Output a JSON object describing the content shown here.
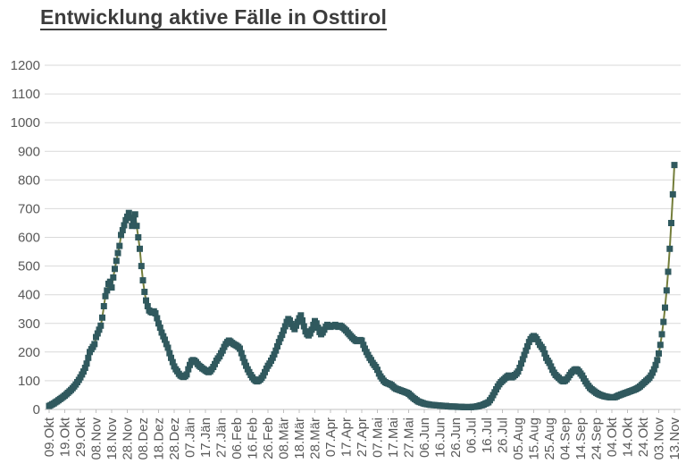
{
  "title": "Entwicklung aktive Fälle in Osttirol",
  "chart_data": {
    "type": "line",
    "title": "Entwicklung aktive Fälle in Osttirol",
    "xlabel": "",
    "ylabel": "",
    "ylim": [
      0,
      1200
    ],
    "y_ticks": [
      0,
      100,
      200,
      300,
      400,
      500,
      600,
      700,
      800,
      900,
      1000,
      1100,
      1200
    ],
    "x_tick_labels": [
      "09.Okt",
      "19.Okt",
      "29.Okt",
      "08.Nov",
      "18.Nov",
      "28.Nov",
      "08.Dez",
      "18.Dez",
      "28.Dez",
      "07.Jän",
      "17.Jän",
      "27.Jän",
      "06.Feb",
      "16.Feb",
      "26.Feb",
      "08.Mär",
      "18.Mär",
      "28.Mär",
      "07.Apr",
      "17.Apr",
      "27.Apr",
      "07.Mai",
      "17.Mai",
      "27.Mai",
      "06.Jun",
      "16.Jun",
      "26.Jun",
      "06.Jul",
      "16.Jul",
      "26.Jul",
      "05.Aug",
      "15.Aug",
      "25.Aug",
      "04.Sep",
      "14.Sep",
      "24.Sep",
      "04.Okt",
      "14.Okt",
      "24.Okt",
      "03.Nov",
      "13.Nov"
    ],
    "tick_interval_days": 10,
    "grid": true,
    "legend": "none",
    "marker": "square",
    "line_color": "#747E3B",
    "marker_color": "#30595E",
    "colors": {
      "grid": "#D9D9D9",
      "axis": "#C0C0C0",
      "tick_text": "#595959",
      "title_text": "#3C3C3C"
    },
    "series": [
      {
        "name": "aktive Fälle",
        "values": [
          12,
          15,
          18,
          21,
          25,
          28,
          32,
          36,
          40,
          44,
          48,
          53,
          58,
          63,
          68,
          74,
          80,
          87,
          95,
          103,
          112,
          122,
          132,
          145,
          160,
          180,
          200,
          210,
          218,
          228,
          252,
          265,
          278,
          292,
          320,
          360,
          395,
          415,
          438,
          445,
          425,
          460,
          490,
          518,
          545,
          570,
          608,
          625,
          642,
          660,
          672,
          685,
          668,
          640,
          660,
          680,
          640,
          600,
          560,
          500,
          450,
          410,
          380,
          360,
          345,
          340,
          338,
          342,
          335,
          318,
          300,
          285,
          268,
          255,
          243,
          228,
          215,
          196,
          180,
          165,
          150,
          140,
          133,
          124,
          118,
          115,
          113,
          116,
          122,
          140,
          155,
          168,
          172,
          170,
          165,
          158,
          152,
          148,
          143,
          140,
          136,
          132,
          130,
          133,
          140,
          148,
          158,
          170,
          178,
          185,
          196,
          205,
          218,
          228,
          235,
          240,
          237,
          232,
          228,
          225,
          222,
          218,
          212,
          196,
          180,
          165,
          152,
          140,
          130,
          120,
          112,
          105,
          100,
          98,
          100,
          104,
          110,
          118,
          130,
          142,
          152,
          160,
          170,
          180,
          192,
          205,
          220,
          235,
          248,
          260,
          275,
          290,
          305,
          315,
          310,
          298,
          288,
          280,
          292,
          305,
          318,
          328,
          310,
          290,
          272,
          262,
          258,
          265,
          278,
          295,
          308,
          300,
          285,
          270,
          262,
          268,
          278,
          288,
          295,
          292,
          288,
          290,
          292,
          295,
          290,
          288,
          292,
          290,
          285,
          280,
          275,
          268,
          262,
          256,
          250,
          245,
          240,
          238,
          240,
          242,
          240,
          225,
          212,
          200,
          190,
          180,
          172,
          162,
          155,
          148,
          138,
          125,
          115,
          108,
          100,
          95,
          92,
          90,
          88,
          85,
          80,
          75,
          72,
          70,
          68,
          66,
          64,
          62,
          60,
          58,
          55,
          50,
          45,
          40,
          36,
          32,
          28,
          26,
          24,
          22,
          20,
          19,
          18,
          17,
          16,
          16,
          15,
          15,
          14,
          14,
          13,
          13,
          12,
          12,
          12,
          11,
          11,
          10,
          10,
          10,
          10,
          9,
          9,
          9,
          9,
          8,
          8,
          8,
          8,
          8,
          8,
          9,
          9,
          10,
          11,
          12,
          14,
          15,
          17,
          20,
          22,
          25,
          32,
          40,
          50,
          60,
          70,
          80,
          88,
          95,
          100,
          105,
          110,
          115,
          118,
          115,
          112,
          115,
          120,
          125,
          132,
          145,
          160,
          175,
          190,
          205,
          220,
          235,
          245,
          252,
          256,
          252,
          245,
          235,
          225,
          218,
          210,
          195,
          180,
          170,
          162,
          150,
          138,
          128,
          120,
          115,
          110,
          105,
          100,
          98,
          100,
          105,
          112,
          120,
          128,
          133,
          138,
          140,
          138,
          132,
          125,
          118,
          108,
          98,
          90,
          82,
          75,
          70,
          66,
          62,
          58,
          55,
          52,
          50,
          48,
          46,
          45,
          44,
          43,
          42,
          42,
          42,
          43,
          45,
          48,
          50,
          52,
          54,
          56,
          58,
          60,
          62,
          64,
          66,
          68,
          70,
          73,
          76,
          80,
          85,
          90,
          95,
          100,
          105,
          110,
          118,
          128,
          140,
          155,
          172,
          195,
          225,
          262,
          305,
          355,
          415,
          480,
          560,
          650,
          750,
          852
        ]
      }
    ]
  }
}
